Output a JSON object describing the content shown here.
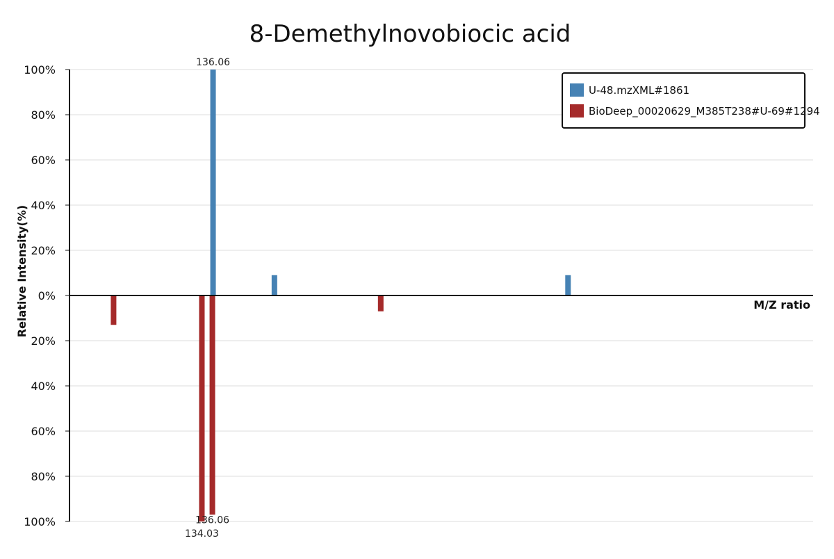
{
  "chart_data": {
    "type": "bar",
    "title": "8-Demethylnovobiocic acid",
    "xlabel": "M/Z ratio",
    "ylabel": "Relative Intensity(%)",
    "yticks_top": [
      "100%",
      "80%",
      "60%",
      "40%",
      "20%",
      "0%"
    ],
    "yticks_bottom": [
      "20%",
      "40%",
      "60%",
      "80%",
      "100%"
    ],
    "ylim": [
      -100,
      100
    ],
    "xlim": [
      110,
      245
    ],
    "grid": true,
    "legend_position": "top-right",
    "series": [
      {
        "name": "U-48.mzXML#1861",
        "color": "#4682b4",
        "direction": "up",
        "peaks": [
          {
            "mz": 136.06,
            "intensity": 100,
            "label": "136.06"
          },
          {
            "mz": 147.2,
            "intensity": 9,
            "label": ""
          },
          {
            "mz": 200.5,
            "intensity": 9,
            "label": ""
          }
        ]
      },
      {
        "name": "BioDeep_00020629_M385T238#U-69#1294",
        "color": "#a52a2a",
        "direction": "down",
        "peaks": [
          {
            "mz": 118.0,
            "intensity": 13,
            "label": ""
          },
          {
            "mz": 134.03,
            "intensity": 100,
            "label": "134.03"
          },
          {
            "mz": 136.06,
            "intensity": 97,
            "label": "136.06"
          },
          {
            "mz": 166.5,
            "intensity": 7,
            "label": ""
          }
        ]
      }
    ]
  }
}
